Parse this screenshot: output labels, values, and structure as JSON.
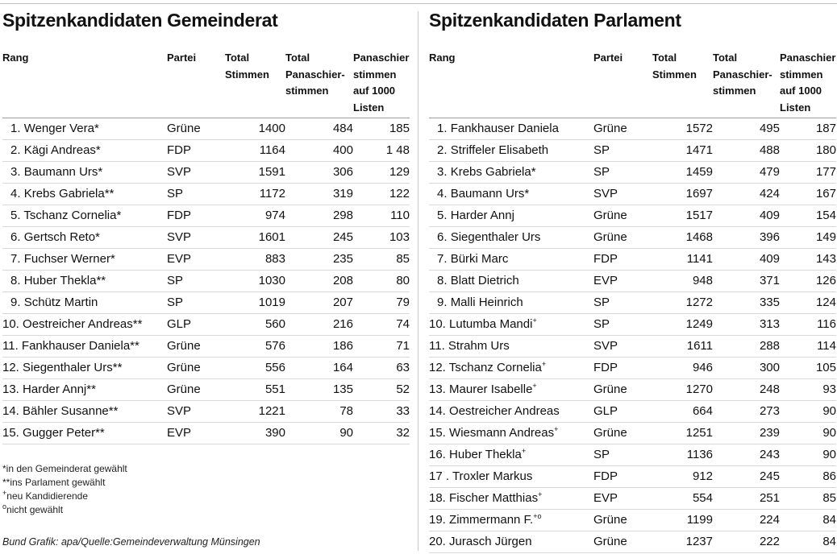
{
  "left": {
    "title": "Spitzenkandidaten Gemeinderat",
    "headers": [
      "Rang",
      "Partei",
      "Total Stimmen",
      "Total Panaschier-stimmen",
      "Panaschier-stimmen auf 1000 Listen"
    ],
    "rows": [
      {
        "rank": "1.",
        "name": "Wenger Vera*",
        "mark": "",
        "party": "Grüne",
        "votes": "1400",
        "pan": "484",
        "per1000": "185"
      },
      {
        "rank": "2.",
        "name": "Kägi Andreas*",
        "mark": "",
        "party": "FDP",
        "votes": "1164",
        "pan": "400",
        "per1000": "1 48"
      },
      {
        "rank": "3.",
        "name": "Baumann Urs*",
        "mark": "",
        "party": "SVP",
        "votes": "1591",
        "pan": "306",
        "per1000": "129"
      },
      {
        "rank": "4.",
        "name": "Krebs Gabriela**",
        "mark": "",
        "party": "SP",
        "votes": "1172",
        "pan": "319",
        "per1000": "122"
      },
      {
        "rank": "5.",
        "name": "Tschanz Cornelia*",
        "mark": "",
        "party": "FDP",
        "votes": "974",
        "pan": "298",
        "per1000": "110"
      },
      {
        "rank": "6.",
        "name": "Gertsch Reto*",
        "mark": "",
        "party": "SVP",
        "votes": "1601",
        "pan": "245",
        "per1000": "103"
      },
      {
        "rank": "7.",
        "name": "Fuchser Werner*",
        "mark": "",
        "party": "EVP",
        "votes": "883",
        "pan": "235",
        "per1000": "85"
      },
      {
        "rank": "8.",
        "name": "Huber Thekla**",
        "mark": "",
        "party": "SP",
        "votes": "1030",
        "pan": "208",
        "per1000": "80"
      },
      {
        "rank": "9.",
        "name": "Schütz Martin",
        "mark": "",
        "party": "SP",
        "votes": "1019",
        "pan": "207",
        "per1000": "79"
      },
      {
        "rank": "10.",
        "name": "Oestreicher Andreas**",
        "mark": "",
        "party": "GLP",
        "votes": "560",
        "pan": "216",
        "per1000": "74"
      },
      {
        "rank": "11.",
        "name": "Fankhauser Daniela**",
        "mark": "",
        "party": "Grüne",
        "votes": "576",
        "pan": "186",
        "per1000": "71"
      },
      {
        "rank": "12.",
        "name": "Siegenthaler Urs**",
        "mark": "",
        "party": "Grüne",
        "votes": "556",
        "pan": "164",
        "per1000": "63"
      },
      {
        "rank": "13.",
        "name": "Harder Annj**",
        "mark": "",
        "party": "Grüne",
        "votes": "551",
        "pan": "135",
        "per1000": "52"
      },
      {
        "rank": "14.",
        "name": "Bähler Susanne**",
        "mark": "",
        "party": "SVP",
        "votes": "1221",
        "pan": "78",
        "per1000": "33"
      },
      {
        "rank": "15.",
        "name": "Gugger Peter**",
        "mark": "",
        "party": "EVP",
        "votes": "390",
        "pan": "90",
        "per1000": "32"
      }
    ]
  },
  "right": {
    "title": "Spitzenkandidaten Parlament",
    "headers": [
      "Rang",
      "Partei",
      "Total Stimmen",
      "Total Panaschier-stimmen",
      "Panaschier-stimmen auf 1000 Listen"
    ],
    "rows": [
      {
        "rank": "1.",
        "name": "Fankhauser Daniela",
        "mark": "",
        "party": "Grüne",
        "votes": "1572",
        "pan": "495",
        "per1000": "187"
      },
      {
        "rank": "2.",
        "name": "Striffeler Elisabeth",
        "mark": "",
        "party": "SP",
        "votes": "1471",
        "pan": "488",
        "per1000": "180"
      },
      {
        "rank": "3.",
        "name": "Krebs Gabriela*",
        "mark": "",
        "party": "SP",
        "votes": "1459",
        "pan": "479",
        "per1000": "177"
      },
      {
        "rank": "4.",
        "name": "Baumann Urs*",
        "mark": "",
        "party": "SVP",
        "votes": "1697",
        "pan": "424",
        "per1000": "167"
      },
      {
        "rank": "5.",
        "name": "Harder Annj",
        "mark": "",
        "party": "Grüne",
        "votes": "1517",
        "pan": "409",
        "per1000": "154"
      },
      {
        "rank": "6.",
        "name": "Siegenthaler Urs",
        "mark": "",
        "party": "Grüne",
        "votes": "1468",
        "pan": "396",
        "per1000": "149"
      },
      {
        "rank": "7.",
        "name": "Bürki Marc",
        "mark": "",
        "party": "FDP",
        "votes": "1141",
        "pan": "409",
        "per1000": "143"
      },
      {
        "rank": "8.",
        "name": "Blatt Dietrich",
        "mark": "",
        "party": "EVP",
        "votes": "948",
        "pan": "371",
        "per1000": "126"
      },
      {
        "rank": "9.",
        "name": "Malli Heinrich",
        "mark": "",
        "party": "SP",
        "votes": "1272",
        "pan": "335",
        "per1000": "124"
      },
      {
        "rank": "10.",
        "name": "Lutumba Mandi",
        "mark": "+",
        "party": "SP",
        "votes": "1249",
        "pan": "313",
        "per1000": "116"
      },
      {
        "rank": "11.",
        "name": "Strahm Urs",
        "mark": "",
        "party": "SVP",
        "votes": "1611",
        "pan": "288",
        "per1000": "114"
      },
      {
        "rank": "12.",
        "name": "Tschanz Cornelia",
        "mark": "+",
        "party": "FDP",
        "votes": "946",
        "pan": "300",
        "per1000": "105"
      },
      {
        "rank": "13.",
        "name": "Maurer Isabelle",
        "mark": "+",
        "party": "Grüne",
        "votes": "1270",
        "pan": "248",
        "per1000": "93"
      },
      {
        "rank": "14.",
        "name": "Oestreicher Andreas",
        "mark": "",
        "party": "GLP",
        "votes": "664",
        "pan": "273",
        "per1000": "90"
      },
      {
        "rank": "15.",
        "name": "Wiesmann Andreas",
        "mark": "+",
        "party": "Grüne",
        "votes": "1251",
        "pan": "239",
        "per1000": "90"
      },
      {
        "rank": "16.",
        "name": "Huber Thekla",
        "mark": "+",
        "party": "SP",
        "votes": "1136",
        "pan": "243",
        "per1000": "90"
      },
      {
        "rank": "17 .",
        "name": "Troxler Markus",
        "mark": "",
        "party": "FDP",
        "votes": "912",
        "pan": "245",
        "per1000": "86"
      },
      {
        "rank": "18.",
        "name": "Fischer Matthias",
        "mark": "+",
        "party": "EVP",
        "votes": "554",
        "pan": "251",
        "per1000": "85"
      },
      {
        "rank": "19.",
        "name": "Zimmermann F.",
        "mark": "+o",
        "party": "Grüne",
        "votes": "1199",
        "pan": "224",
        "per1000": "84"
      },
      {
        "rank": "20.",
        "name": "Jurasch Jürgen",
        "mark": "",
        "party": "Grüne",
        "votes": "1237",
        "pan": "222",
        "per1000": "84"
      }
    ]
  },
  "footnotes": [
    {
      "mark": "",
      "text": "*in den Gemeinderat gewählt"
    },
    {
      "mark": "",
      "text": "**ins Parlament gewählt"
    },
    {
      "mark": "+",
      "text": "neu Kandidierende"
    },
    {
      "mark": "o",
      "text": "nicht gewählt"
    }
  ],
  "source": "Bund Grafik: apa/Quelle:Gemeindeverwaltung Münsingen"
}
